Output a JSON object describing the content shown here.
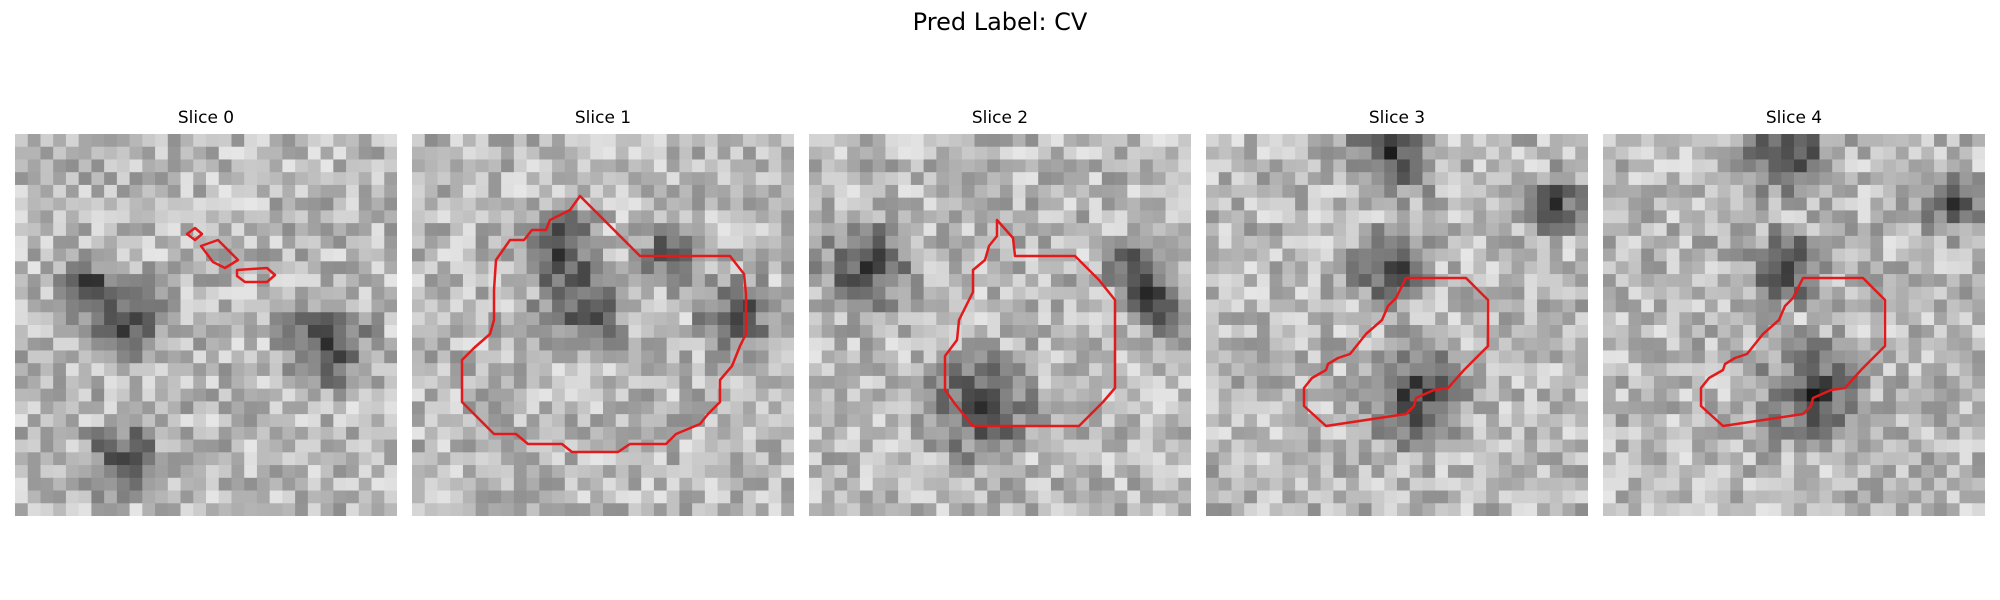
{
  "figure": {
    "suptitle": "Pred Label: CV"
  },
  "panels": [
    {
      "title": "Slice 0"
    },
    {
      "title": "Slice 1"
    },
    {
      "title": "Slice 2"
    },
    {
      "title": "Slice 3"
    },
    {
      "title": "Slice 4"
    }
  ],
  "colors": {
    "contour": "#e31a1c",
    "background": "#ffffff"
  }
}
